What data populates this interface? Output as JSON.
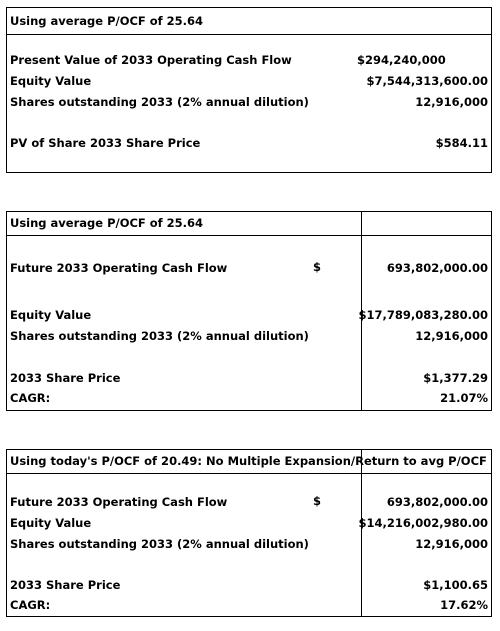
{
  "section1": {
    "header": "Using average P/OCF of 25.64",
    "rows": [
      {
        "label": "Present Value of 2033 Operating Cash Flow",
        "value": "$294,240,000"
      },
      {
        "label": "Equity Value",
        "value": "$7,544,313,600.00"
      },
      {
        "label": "Shares outstanding 2033 (2% annual dilution)",
        "value": "12,916,000"
      },
      {
        "label": "PV of Share 2033 Share Price",
        "value": "$584.11"
      }
    ]
  },
  "section2": {
    "header": "Using average P/OCF of 25.64",
    "rows": [
      {
        "label": "Future 2033 Operating Cash Flow",
        "dollar": "$",
        "value": "693,802,000.00"
      },
      {
        "label": "Equity Value",
        "value": "$17,789,083,280.00"
      },
      {
        "label": "Shares outstanding 2033 (2% annual dilution)",
        "value": "12,916,000"
      },
      {
        "label": "2033 Share Price",
        "value": "$1,377.29"
      },
      {
        "label": "CAGR:",
        "value": "21.07%"
      }
    ]
  },
  "section3": {
    "header": "Using today's P/OCF of 20.49: No Multiple Expansion/Return to avg P/OCF",
    "rows": [
      {
        "label": "Future 2033 Operating Cash Flow",
        "dollar": "$",
        "value": "693,802,000.00"
      },
      {
        "label": "Equity Value",
        "value": "$14,216,002,980.00"
      },
      {
        "label": "Shares outstanding 2033 (2% annual dilution)",
        "value": "12,916,000"
      },
      {
        "label": "2033 Share Price",
        "value": "$1,100.65"
      },
      {
        "label": "CAGR:",
        "value": "17.62%"
      }
    ]
  }
}
